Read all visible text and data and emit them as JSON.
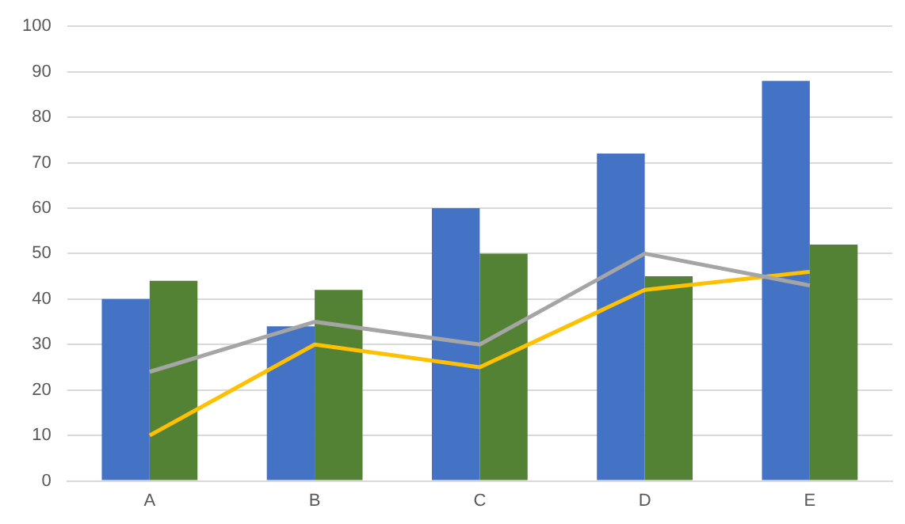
{
  "chart_data": {
    "type": "bar",
    "categories": [
      "A",
      "B",
      "C",
      "D",
      "E"
    ],
    "series": [
      {
        "color": "#4472c4",
        "values": [
          40,
          34,
          60,
          72,
          88
        ]
      },
      {
        "color": "#548235",
        "values": [
          44,
          42,
          50,
          45,
          52
        ]
      },
      {
        "type": "line",
        "color": "#a5a5a5",
        "values": [
          24,
          35,
          30,
          50,
          43
        ]
      },
      {
        "type": "line",
        "color": "#ffc000",
        "values": [
          10,
          30,
          25,
          42,
          46
        ]
      }
    ],
    "ylim": [
      0,
      100
    ],
    "yticks": [
      0,
      10,
      20,
      30,
      40,
      50,
      60,
      70,
      80,
      90,
      100
    ],
    "grid": "y",
    "legend": false,
    "marker": "none"
  }
}
